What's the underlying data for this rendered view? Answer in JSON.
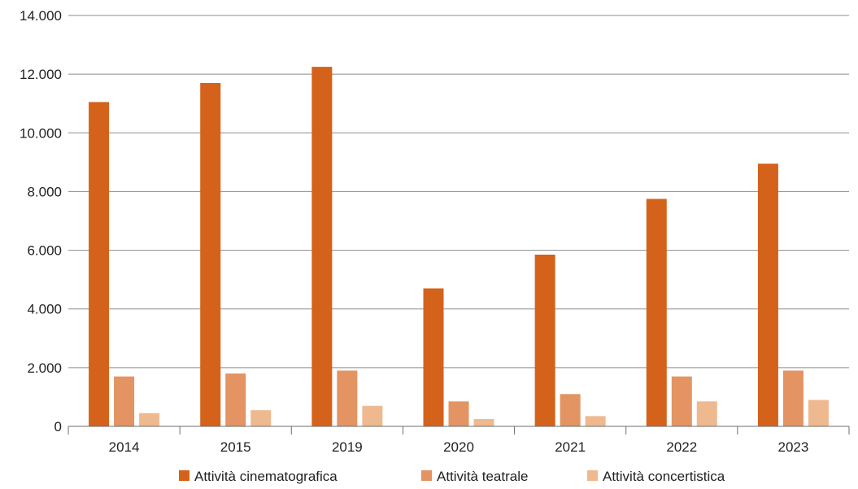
{
  "chart_data": {
    "type": "bar",
    "categories": [
      "2014",
      "2015",
      "2019",
      "2020",
      "2021",
      "2022",
      "2023"
    ],
    "series": [
      {
        "name": "Attività cinematografica",
        "color": "#d4621b",
        "values": [
          11050,
          11700,
          12250,
          4700,
          5850,
          7750,
          8950
        ]
      },
      {
        "name": "Attività teatrale",
        "color": "#e39462",
        "values": [
          1700,
          1800,
          1900,
          850,
          1100,
          1700,
          1900
        ]
      },
      {
        "name": "Attività concertistica",
        "color": "#efb990",
        "values": [
          450,
          550,
          700,
          250,
          350,
          850,
          900
        ]
      }
    ],
    "yticks": [
      "0",
      "2.000",
      "4.000",
      "6.000",
      "8.000",
      "10.000",
      "12.000",
      "14.000"
    ],
    "ylim": [
      0,
      14000
    ],
    "grid": true,
    "legend": "bottom",
    "title": "",
    "xlabel": "",
    "ylabel": ""
  }
}
